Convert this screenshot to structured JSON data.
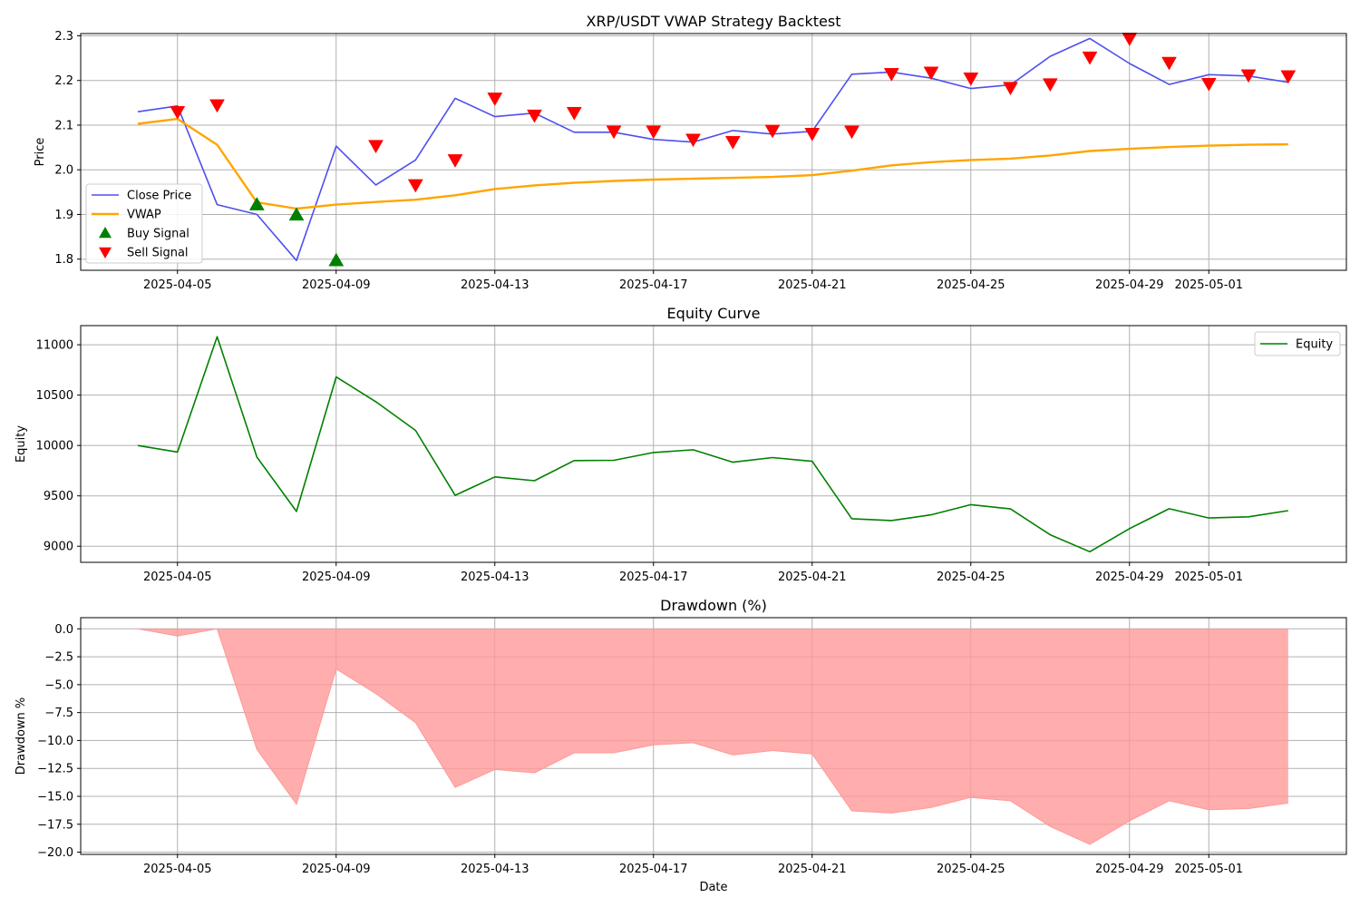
{
  "chart_data": [
    {
      "type": "line",
      "title": "XRP/USDT VWAP Strategy Backtest",
      "xlabel": "",
      "ylabel": "Price",
      "x": [
        "2025-04-04",
        "2025-04-05",
        "2025-04-06",
        "2025-04-07",
        "2025-04-08",
        "2025-04-09",
        "2025-04-10",
        "2025-04-11",
        "2025-04-12",
        "2025-04-13",
        "2025-04-14",
        "2025-04-15",
        "2025-04-16",
        "2025-04-17",
        "2025-04-18",
        "2025-04-19",
        "2025-04-20",
        "2025-04-21",
        "2025-04-22",
        "2025-04-23",
        "2025-04-24",
        "2025-04-25",
        "2025-04-26",
        "2025-04-27",
        "2025-04-28",
        "2025-04-29",
        "2025-04-30",
        "2025-05-01",
        "2025-05-02",
        "2025-05-03"
      ],
      "x_ticks": [
        "2025-04-05",
        "2025-04-09",
        "2025-04-13",
        "2025-04-17",
        "2025-04-21",
        "2025-04-25",
        "2025-04-29",
        "2025-05-01"
      ],
      "ylim": [
        1.775,
        2.305
      ],
      "y_ticks": [
        "1.8",
        "1.9",
        "2.0",
        "2.1",
        "2.2",
        "2.3"
      ],
      "grid": true,
      "legend_position": "center-left",
      "series": [
        {
          "name": "Close Price",
          "color": "#4f4ff0",
          "values": [
            2.13,
            2.143,
            1.922,
            1.9,
            1.797,
            2.053,
            1.966,
            2.022,
            2.16,
            2.119,
            2.127,
            2.084,
            2.084,
            2.068,
            2.062,
            2.088,
            2.08,
            2.086,
            2.214,
            2.219,
            2.205,
            2.182,
            2.19,
            2.254,
            2.294,
            2.238,
            2.191,
            2.213,
            2.21,
            2.196
          ]
        },
        {
          "name": "VWAP",
          "color": "#ffa500",
          "values": [
            2.103,
            2.114,
            2.056,
            1.927,
            1.913,
            1.922,
            1.928,
            1.933,
            1.943,
            1.957,
            1.965,
            1.971,
            1.975,
            1.978,
            1.98,
            1.982,
            1.984,
            1.988,
            1.998,
            2.01,
            2.017,
            2.022,
            2.025,
            2.032,
            2.042,
            2.047,
            2.051,
            2.054,
            2.056,
            2.057
          ]
        }
      ],
      "markers": [
        {
          "name": "Buy Signal",
          "color": "#008000",
          "shape": "triangle-up",
          "x": [
            "2025-04-07",
            "2025-04-08",
            "2025-04-09"
          ],
          "values": [
            1.922,
            1.899,
            1.797
          ]
        },
        {
          "name": "Sell Signal",
          "color": "#ff0000",
          "shape": "triangle-down",
          "x": [
            "2025-04-05",
            "2025-04-06",
            "2025-04-10",
            "2025-04-11",
            "2025-04-12",
            "2025-04-13",
            "2025-04-14",
            "2025-04-15",
            "2025-04-16",
            "2025-04-17",
            "2025-04-18",
            "2025-04-19",
            "2025-04-20",
            "2025-04-21",
            "2025-04-22",
            "2025-04-23",
            "2025-04-24",
            "2025-04-25",
            "2025-04-26",
            "2025-04-27",
            "2025-04-28",
            "2025-04-29",
            "2025-04-30",
            "2025-05-01",
            "2025-05-02",
            "2025-05-03"
          ],
          "values": [
            2.13,
            2.145,
            2.054,
            1.966,
            2.022,
            2.16,
            2.122,
            2.128,
            2.086,
            2.086,
            2.068,
            2.063,
            2.088,
            2.081,
            2.086,
            2.215,
            2.218,
            2.205,
            2.184,
            2.192,
            2.252,
            2.294,
            2.24,
            2.193,
            2.212,
            2.21
          ]
        }
      ]
    },
    {
      "type": "line",
      "title": "Equity Curve",
      "xlabel": "",
      "ylabel": "Equity",
      "x": [
        "2025-04-04",
        "2025-04-05",
        "2025-04-06",
        "2025-04-07",
        "2025-04-08",
        "2025-04-09",
        "2025-04-10",
        "2025-04-11",
        "2025-04-12",
        "2025-04-13",
        "2025-04-14",
        "2025-04-15",
        "2025-04-16",
        "2025-04-17",
        "2025-04-18",
        "2025-04-19",
        "2025-04-20",
        "2025-04-21",
        "2025-04-22",
        "2025-04-23",
        "2025-04-24",
        "2025-04-25",
        "2025-04-26",
        "2025-04-27",
        "2025-04-28",
        "2025-04-29",
        "2025-04-30",
        "2025-05-01",
        "2025-05-02",
        "2025-05-03"
      ],
      "x_ticks": [
        "2025-04-05",
        "2025-04-09",
        "2025-04-13",
        "2025-04-17",
        "2025-04-21",
        "2025-04-25",
        "2025-04-29",
        "2025-05-01"
      ],
      "ylim": [
        8840,
        11190
      ],
      "y_ticks": [
        "9000",
        "9500",
        "10000",
        "10500",
        "11000"
      ],
      "grid": true,
      "legend_position": "top-right",
      "series": [
        {
          "name": "Equity",
          "color": "#008000",
          "values": [
            10000,
            9935,
            11080,
            9885,
            9345,
            10680,
            10435,
            10150,
            9505,
            9688,
            9650,
            9850,
            9853,
            9930,
            9957,
            9834,
            9880,
            9843,
            9273,
            9255,
            9312,
            9413,
            9370,
            9114,
            8945,
            9175,
            9372,
            9280,
            9292,
            9353
          ]
        }
      ]
    },
    {
      "type": "area",
      "title": "Drawdown (%)",
      "xlabel": "Date",
      "ylabel": "Drawdown %",
      "x": [
        "2025-04-04",
        "2025-04-05",
        "2025-04-06",
        "2025-04-07",
        "2025-04-08",
        "2025-04-09",
        "2025-04-10",
        "2025-04-11",
        "2025-04-12",
        "2025-04-13",
        "2025-04-14",
        "2025-04-15",
        "2025-04-16",
        "2025-04-17",
        "2025-04-18",
        "2025-04-19",
        "2025-04-20",
        "2025-04-21",
        "2025-04-22",
        "2025-04-23",
        "2025-04-24",
        "2025-04-25",
        "2025-04-26",
        "2025-04-27",
        "2025-04-28",
        "2025-04-29",
        "2025-04-30",
        "2025-05-01",
        "2025-05-02",
        "2025-05-03"
      ],
      "x_ticks": [
        "2025-04-05",
        "2025-04-09",
        "2025-04-13",
        "2025-04-17",
        "2025-04-21",
        "2025-04-25",
        "2025-04-29",
        "2025-05-01"
      ],
      "ylim": [
        -20.2,
        1.0
      ],
      "y_ticks": [
        "0.0",
        "−2.5",
        "−5.0",
        "−7.5",
        "−10.0",
        "−12.5",
        "−15.0",
        "−17.5",
        "−20.0"
      ],
      "grid": true,
      "series": [
        {
          "color": "#ff9999",
          "values": [
            0.0,
            -0.65,
            0.0,
            -10.8,
            -15.7,
            -3.6,
            -5.8,
            -8.4,
            -14.2,
            -12.6,
            -12.9,
            -11.1,
            -11.1,
            -10.4,
            -10.2,
            -11.3,
            -10.9,
            -11.2,
            -16.3,
            -16.5,
            -16.0,
            -15.1,
            -15.4,
            -17.7,
            -19.3,
            -17.2,
            -15.4,
            -16.2,
            -16.1,
            -15.6
          ]
        }
      ]
    }
  ]
}
